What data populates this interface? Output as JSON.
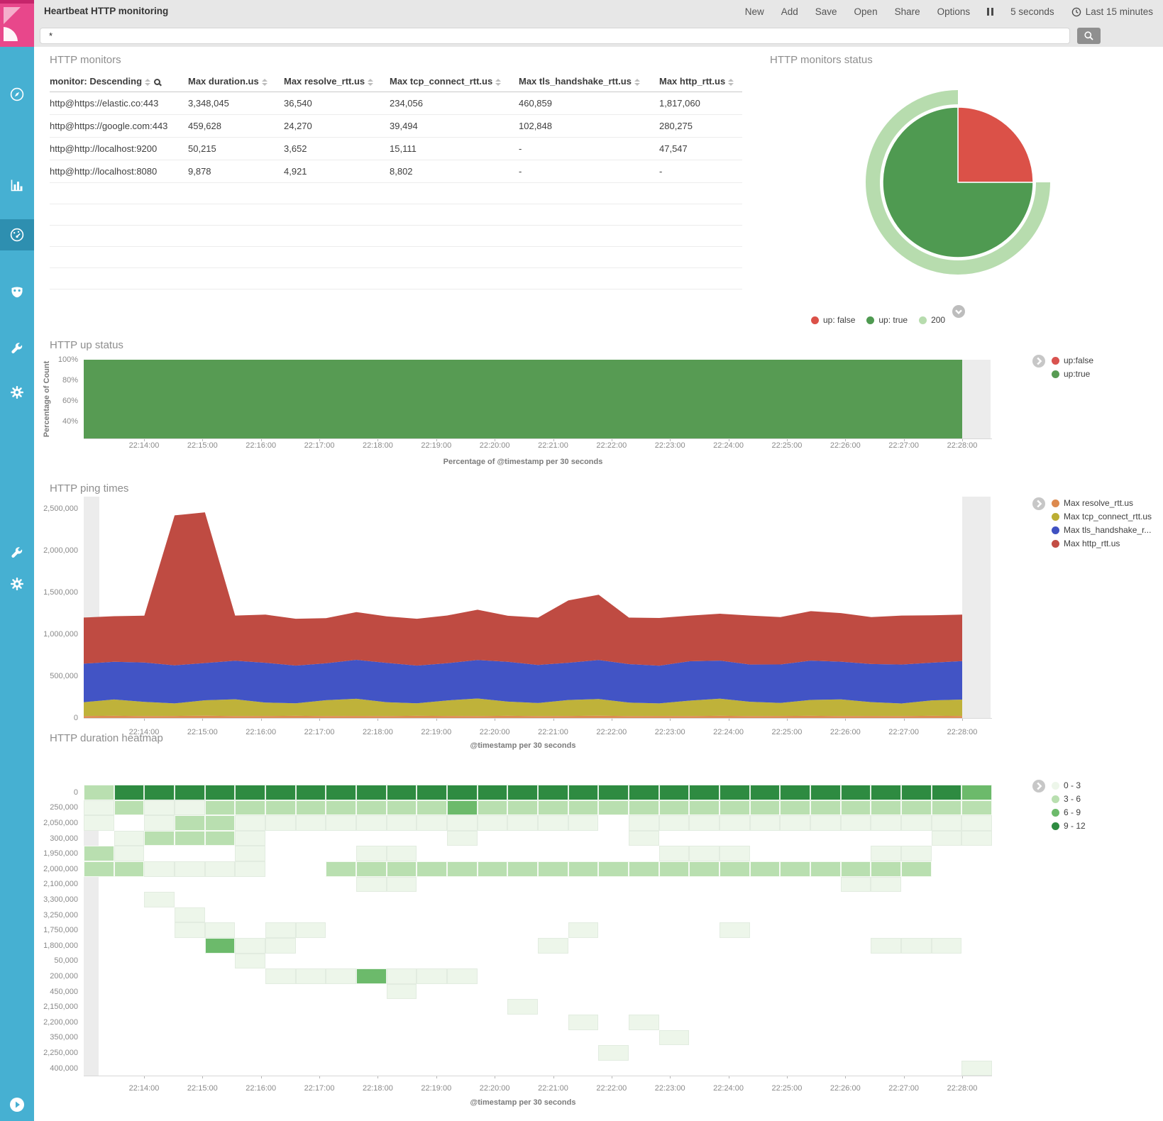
{
  "topbar": {
    "title": "Heartbeat HTTP monitoring",
    "menu": [
      "New",
      "Add",
      "Save",
      "Open",
      "Share",
      "Options"
    ],
    "refresh_interval": "5 seconds",
    "time_range": "Last 15 minutes"
  },
  "query": {
    "value": "*"
  },
  "sidebar": {
    "icons": [
      "compass",
      "bar-chart",
      "gauge",
      "mask",
      "wrench",
      "gear"
    ],
    "selected_index": 2,
    "lower_icons": [
      "wrench",
      "gear"
    ]
  },
  "panels": {
    "monitors": {
      "title": "HTTP monitors",
      "table": {
        "columns": [
          "monitor: Descending",
          "Max duration.us",
          "Max resolve_rtt.us",
          "Max tcp_connect_rtt.us",
          "Max tls_handshake_rtt.us",
          "Max http_rtt.us"
        ],
        "rows": [
          [
            "http@https://elastic.co:443",
            "3,348,045",
            "36,540",
            "234,056",
            "460,859",
            "1,817,060"
          ],
          [
            "http@https://google.com:443",
            "459,628",
            "24,270",
            "39,494",
            "102,848",
            "280,275"
          ],
          [
            "http@http://localhost:9200",
            "50,215",
            "3,652",
            "15,111",
            "-",
            "47,547"
          ],
          [
            "http@http://localhost:8080",
            "9,878",
            "4,921",
            "8,802",
            "-",
            "-"
          ]
        ],
        "empty_rows": 5
      }
    },
    "status": {
      "title": "HTTP monitors status",
      "legend": [
        {
          "label": "up: false",
          "color": "#db5148"
        },
        {
          "label": "up: true",
          "color": "#4f9a51"
        },
        {
          "label": "200",
          "color": "#b7dcae"
        }
      ]
    },
    "up": {
      "title": "HTTP up status",
      "legend": [
        {
          "label": "up:false",
          "color": "#d9534f"
        },
        {
          "label": "up:true",
          "color": "#579b53"
        }
      ]
    },
    "ping": {
      "title": "HTTP ping times",
      "legend": [
        {
          "label": "Max resolve_rtt.us",
          "color": "#dd8a4e"
        },
        {
          "label": "Max tcp_connect_rtt.us",
          "color": "#bcae33"
        },
        {
          "label": "Max tls_handshake_r...",
          "color": "#3f51c1"
        },
        {
          "label": "Max http_rtt.us",
          "color": "#c34d44"
        }
      ]
    },
    "heatmap": {
      "title": "HTTP duration heatmap",
      "legend": [
        {
          "label": "0 - 3",
          "color": "#edf6ea"
        },
        {
          "label": "3 - 6",
          "color": "#b9dfb0"
        },
        {
          "label": "6 - 9",
          "color": "#6cba6b"
        },
        {
          "label": "9 - 12",
          "color": "#2e8b41"
        }
      ]
    }
  },
  "time_ticks": [
    "22:14:00",
    "22:15:00",
    "22:16:00",
    "22:17:00",
    "22:18:00",
    "22:19:00",
    "22:20:00",
    "22:21:00",
    "22:22:00",
    "22:23:00",
    "22:24:00",
    "22:25:00",
    "22:26:00",
    "22:27:00",
    "22:28:00"
  ],
  "chart_data": [
    {
      "id": "monitors_status_pie",
      "type": "pie",
      "title": "HTTP monitors status",
      "slices": [
        {
          "label": "up: false",
          "value": 25,
          "color": "#db5148"
        },
        {
          "label": "up: true",
          "value": 75,
          "color": "#4f9a51"
        }
      ],
      "outer_ring": [
        {
          "label": "200",
          "value": 75,
          "start": 25,
          "color": "#b7dcae"
        }
      ],
      "legend_position": "bottom"
    },
    {
      "id": "up_status",
      "type": "area",
      "title": "HTTP up status",
      "xlabel": "Percentage of @timestamp per 30 seconds",
      "ylabel": "Percentage of Count",
      "y_ticks": [
        "40%",
        "60%",
        "80%",
        "100%"
      ],
      "x_ticks": [
        "22:14:00",
        "22:15:00",
        "22:16:00",
        "22:17:00",
        "22:18:00",
        "22:19:00",
        "22:20:00",
        "22:21:00",
        "22:22:00",
        "22:23:00",
        "22:24:00",
        "22:25:00",
        "22:26:00",
        "22:27:00",
        "22:28:00"
      ],
      "series": [
        {
          "name": "up:true",
          "color": "#579b53",
          "constant_percent": 100
        },
        {
          "name": "up:false",
          "color": "#d9534f",
          "constant_percent": 0
        }
      ]
    },
    {
      "id": "ping_times",
      "type": "area",
      "stacked": true,
      "title": "HTTP ping times",
      "xlabel": "@timestamp per 30 seconds",
      "ylim": [
        0,
        2500000
      ],
      "y_ticks": [
        "0",
        "500,000",
        "1,000,000",
        "1,500,000",
        "2,000,000",
        "2,500,000"
      ],
      "x_start": "22:13:30",
      "x_step_seconds": 30,
      "x_ticks": [
        "22:14:00",
        "22:15:00",
        "22:16:00",
        "22:17:00",
        "22:18:00",
        "22:19:00",
        "22:20:00",
        "22:21:00",
        "22:22:00",
        "22:23:00",
        "22:24:00",
        "22:25:00",
        "22:26:00",
        "22:27:00",
        "22:28:00"
      ],
      "series": [
        {
          "name": "Max resolve_rtt.us",
          "color": "#dd8c53",
          "values": [
            24000,
            26000,
            23000,
            25000,
            27000,
            24000,
            25000,
            26000,
            23000,
            25000,
            24000,
            26000,
            25000,
            23000,
            26000,
            24000,
            25000,
            27000,
            24000,
            25000,
            23000,
            26000,
            24000,
            25000,
            26000,
            23000,
            25000,
            24000,
            26000,
            25000
          ]
        },
        {
          "name": "Max tcp_connect_rtt.us",
          "color": "#bfb23a",
          "values": [
            165000,
            195000,
            170000,
            150000,
            185000,
            200000,
            160000,
            150000,
            190000,
            205000,
            165000,
            150000,
            185000,
            210000,
            170000,
            155000,
            190000,
            200000,
            160000,
            150000,
            185000,
            205000,
            170000,
            155000,
            190000,
            200000,
            165000,
            150000,
            185000,
            195000
          ]
        },
        {
          "name": "Max tls_handshake_rtt.us",
          "color": "#4254c5",
          "values": [
            460000,
            450000,
            470000,
            455000,
            445000,
            460000,
            475000,
            450000,
            440000,
            465000,
            470000,
            450000,
            445000,
            460000,
            475000,
            455000,
            445000,
            465000,
            460000,
            450000,
            470000,
            455000,
            445000,
            460000,
            470000,
            450000,
            455000,
            465000,
            450000,
            460000
          ]
        },
        {
          "name": "Max http_rtt.us",
          "color": "#bf4b42",
          "values": [
            551000,
            545000,
            560000,
            1790000,
            1800000,
            540000,
            575000,
            560000,
            540000,
            570000,
            555000,
            560000,
            570000,
            600000,
            550000,
            565000,
            745000,
            780000,
            555000,
            570000,
            545000,
            560000,
            585000,
            565000,
            590000,
            580000,
            560000,
            585000,
            565000,
            555000
          ]
        }
      ]
    },
    {
      "id": "duration_heatmap",
      "type": "heatmap",
      "title": "HTTP duration heatmap",
      "xlabel": "@timestamp per 30 seconds",
      "x_ticks": [
        "22:14:00",
        "22:15:00",
        "22:16:00",
        "22:17:00",
        "22:18:00",
        "22:19:00",
        "22:20:00",
        "22:21:00",
        "22:22:00",
        "22:23:00",
        "22:24:00",
        "22:25:00",
        "22:26:00",
        "22:27:00",
        "22:28:00"
      ],
      "row_labels": [
        "0",
        "250,000",
        "2,050,000",
        "300,000",
        "1,950,000",
        "2,000,000",
        "2,100,000",
        "3,300,000",
        "3,250,000",
        "1,750,000",
        "1,800,000",
        "50,000",
        "200,000",
        "450,000",
        "2,150,000",
        "2,200,000",
        "350,000",
        "2,250,000",
        "400,000"
      ],
      "levels": {
        "labels": [
          "0 - 3",
          "3 - 6",
          "6 - 9",
          "9 - 12"
        ],
        "colors": [
          "#edf6ea",
          "#b9dfb0",
          "#6cba6b",
          "#2e8b41"
        ]
      },
      "grid": [
        "133333333333333333333333333332",
        "010011111111211111111111111111",
        "0.011000000000000.000000000000",
        ".01110......0.....0.........00",
        "10...0...00........000....00..",
        "110000..11111111111111111111..",
        ".........00..............00...",
        "..0...........................",
        "...0..........................",
        "...00.00........0....0........",
        "....200........0..........000.",
        ".....0........................",
        "......0002000.................",
        "..........0...................",
        "..............0...............",
        "................0.0...........",
        "...................0..........",
        ".................0............",
        ".............................0"
      ]
    }
  ]
}
